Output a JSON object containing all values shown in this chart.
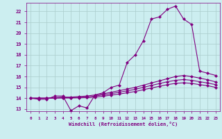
{
  "xlabel": "Windchill (Refroidissement éolien,°C)",
  "bg_color": "#cceef0",
  "grid_color": "#aacccc",
  "line_color": "#800080",
  "xlim": [
    -0.5,
    23.5
  ],
  "ylim": [
    12.8,
    22.8
  ],
  "xticks": [
    0,
    1,
    2,
    3,
    4,
    5,
    6,
    7,
    8,
    9,
    10,
    11,
    12,
    13,
    14,
    15,
    16,
    17,
    18,
    19,
    20,
    21,
    22,
    23
  ],
  "yticks": [
    13,
    14,
    15,
    16,
    17,
    18,
    19,
    20,
    21,
    22
  ],
  "series1_x": [
    0,
    1,
    2,
    3,
    4,
    5,
    6,
    7,
    8,
    9,
    10,
    11,
    12,
    13,
    14,
    15,
    16,
    17,
    18,
    19,
    20,
    21,
    22,
    23
  ],
  "series1_y": [
    14.0,
    13.9,
    13.9,
    14.2,
    14.2,
    12.85,
    13.3,
    13.1,
    14.3,
    14.5,
    15.0,
    15.2,
    17.3,
    18.0,
    19.3,
    21.3,
    21.5,
    22.2,
    22.5,
    21.3,
    20.8,
    16.5,
    16.3,
    16.1
  ],
  "series2_x": [
    0,
    1,
    2,
    3,
    4,
    5,
    6,
    7,
    8,
    9,
    10,
    11,
    12,
    13,
    14,
    15,
    16,
    17,
    18,
    19,
    20,
    21,
    22,
    23
  ],
  "series2_y": [
    14.0,
    14.0,
    14.0,
    14.05,
    14.1,
    14.1,
    14.15,
    14.2,
    14.3,
    14.4,
    14.55,
    14.7,
    14.85,
    15.0,
    15.2,
    15.4,
    15.6,
    15.8,
    16.0,
    16.1,
    16.0,
    15.85,
    15.7,
    15.5
  ],
  "series3_x": [
    0,
    1,
    2,
    3,
    4,
    5,
    6,
    7,
    8,
    9,
    10,
    11,
    12,
    13,
    14,
    15,
    16,
    17,
    18,
    19,
    20,
    21,
    22,
    23
  ],
  "series3_y": [
    14.0,
    14.0,
    14.0,
    14.02,
    14.05,
    14.05,
    14.08,
    14.1,
    14.2,
    14.3,
    14.42,
    14.55,
    14.68,
    14.82,
    15.0,
    15.18,
    15.35,
    15.52,
    15.65,
    15.72,
    15.65,
    15.52,
    15.4,
    15.25
  ],
  "series4_x": [
    0,
    1,
    2,
    3,
    4,
    5,
    6,
    7,
    8,
    9,
    10,
    11,
    12,
    13,
    14,
    15,
    16,
    17,
    18,
    19,
    20,
    21,
    22,
    23
  ],
  "series4_y": [
    14.0,
    14.0,
    14.0,
    14.01,
    14.02,
    14.02,
    14.04,
    14.06,
    14.1,
    14.18,
    14.28,
    14.38,
    14.5,
    14.62,
    14.78,
    14.94,
    15.1,
    15.25,
    15.37,
    15.42,
    15.37,
    15.25,
    15.15,
    15.0
  ]
}
